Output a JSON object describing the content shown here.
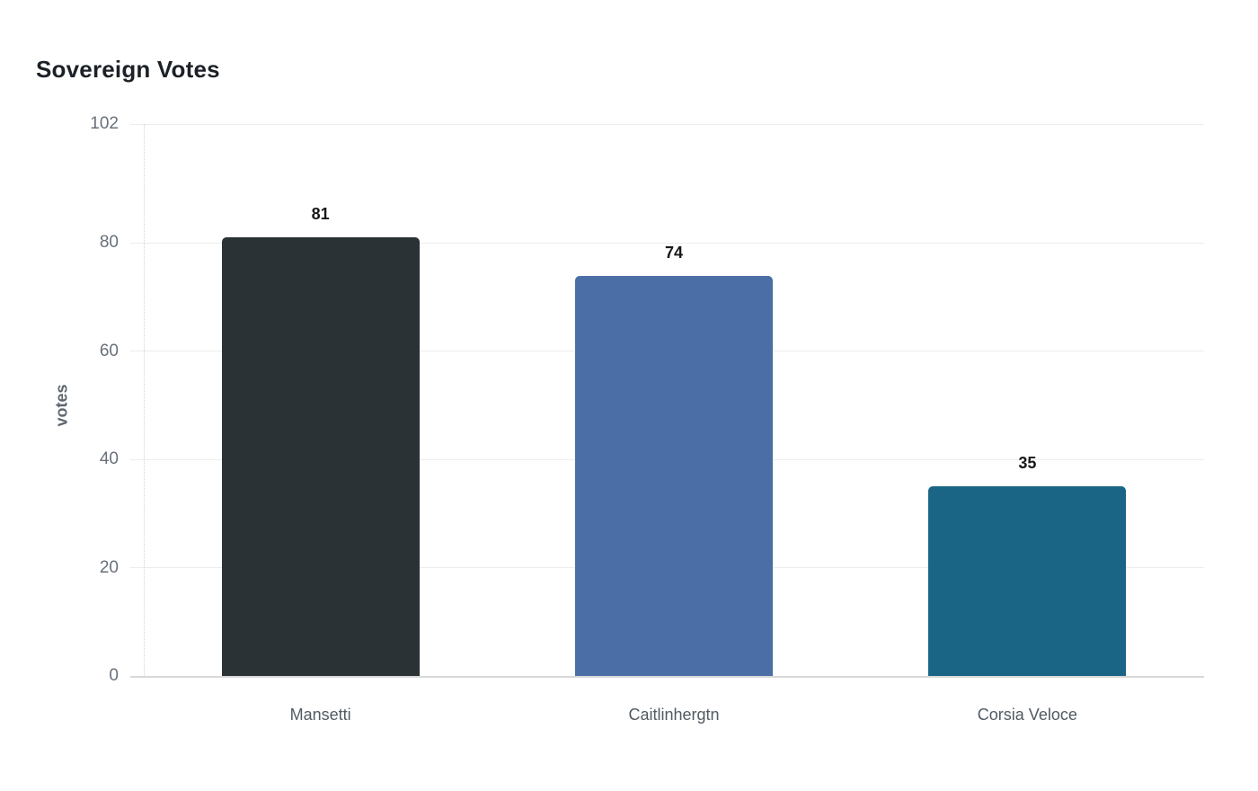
{
  "title": "Sovereign Votes",
  "chart_data": {
    "type": "bar",
    "title": "Sovereign Votes",
    "categories": [
      "Mansetti",
      "Caitlinhergtn",
      "Corsia Veloce"
    ],
    "values": [
      81,
      74,
      35
    ],
    "bar_colors": [
      "#2a3236",
      "#4b6ea6",
      "#1a6585"
    ],
    "xlabel": "",
    "ylabel": "votes",
    "ylim": [
      0,
      102
    ],
    "yticks": [
      0,
      20,
      40,
      60,
      80,
      102
    ],
    "grid": true,
    "legend": false,
    "value_labels_shown": true
  },
  "colors": {
    "background": "#ffffff",
    "gridline": "#ececec",
    "axis_line": "#d8d8d8",
    "tick_label": "#68707a",
    "category_label": "#515a62",
    "value_label": "#16181a",
    "title": "#1c2127",
    "ylabel": "#5c6670"
  }
}
